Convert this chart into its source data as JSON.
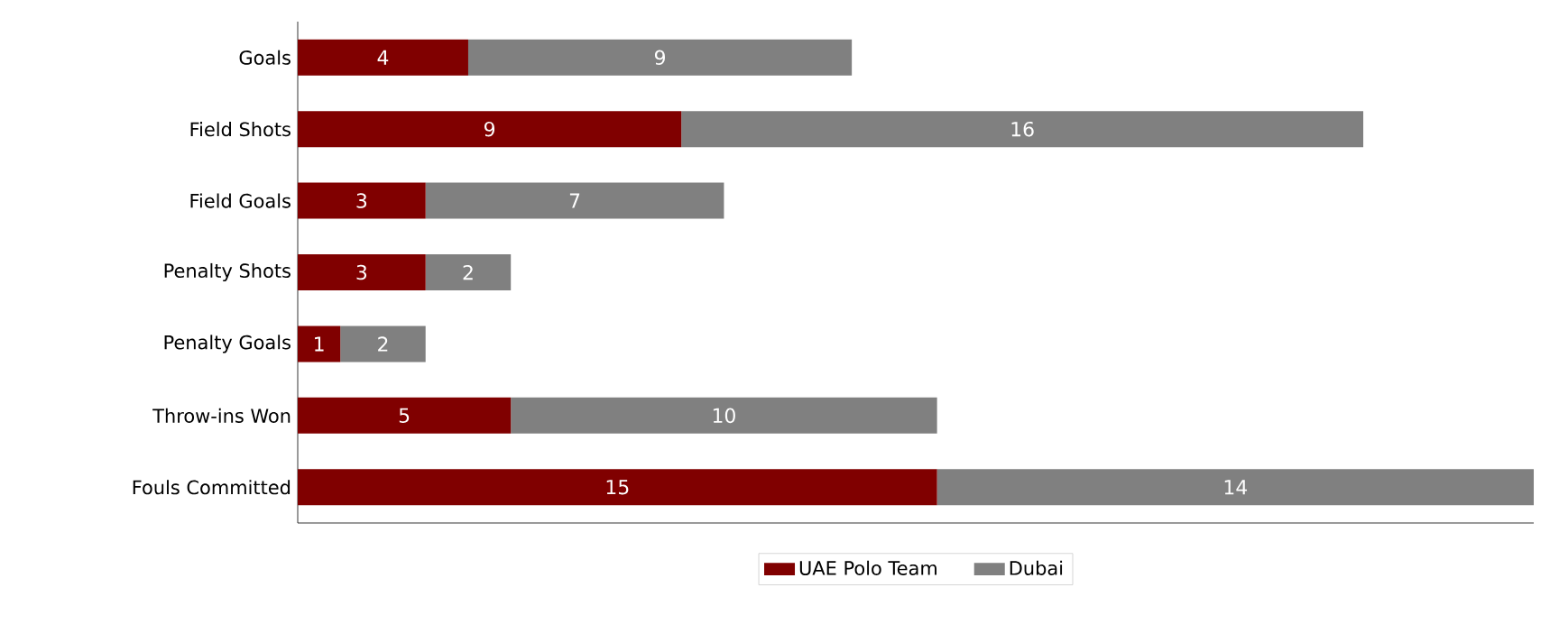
{
  "chart_data": {
    "type": "bar",
    "orientation": "horizontal",
    "stacked": true,
    "data_labels": true,
    "legend": "bottom",
    "categories": [
      "Goals",
      "Field Shots",
      "Field Goals",
      "Penalty Shots",
      "Penalty Goals",
      "Throw-ins Won",
      "Fouls Committed"
    ],
    "series": [
      {
        "name": "UAE Polo Team",
        "color": "#800000",
        "values": [
          4,
          9,
          3,
          3,
          1,
          5,
          15
        ]
      },
      {
        "name": "Dubai",
        "color": "#808080",
        "values": [
          9,
          16,
          7,
          2,
          2,
          10,
          14
        ]
      }
    ]
  }
}
